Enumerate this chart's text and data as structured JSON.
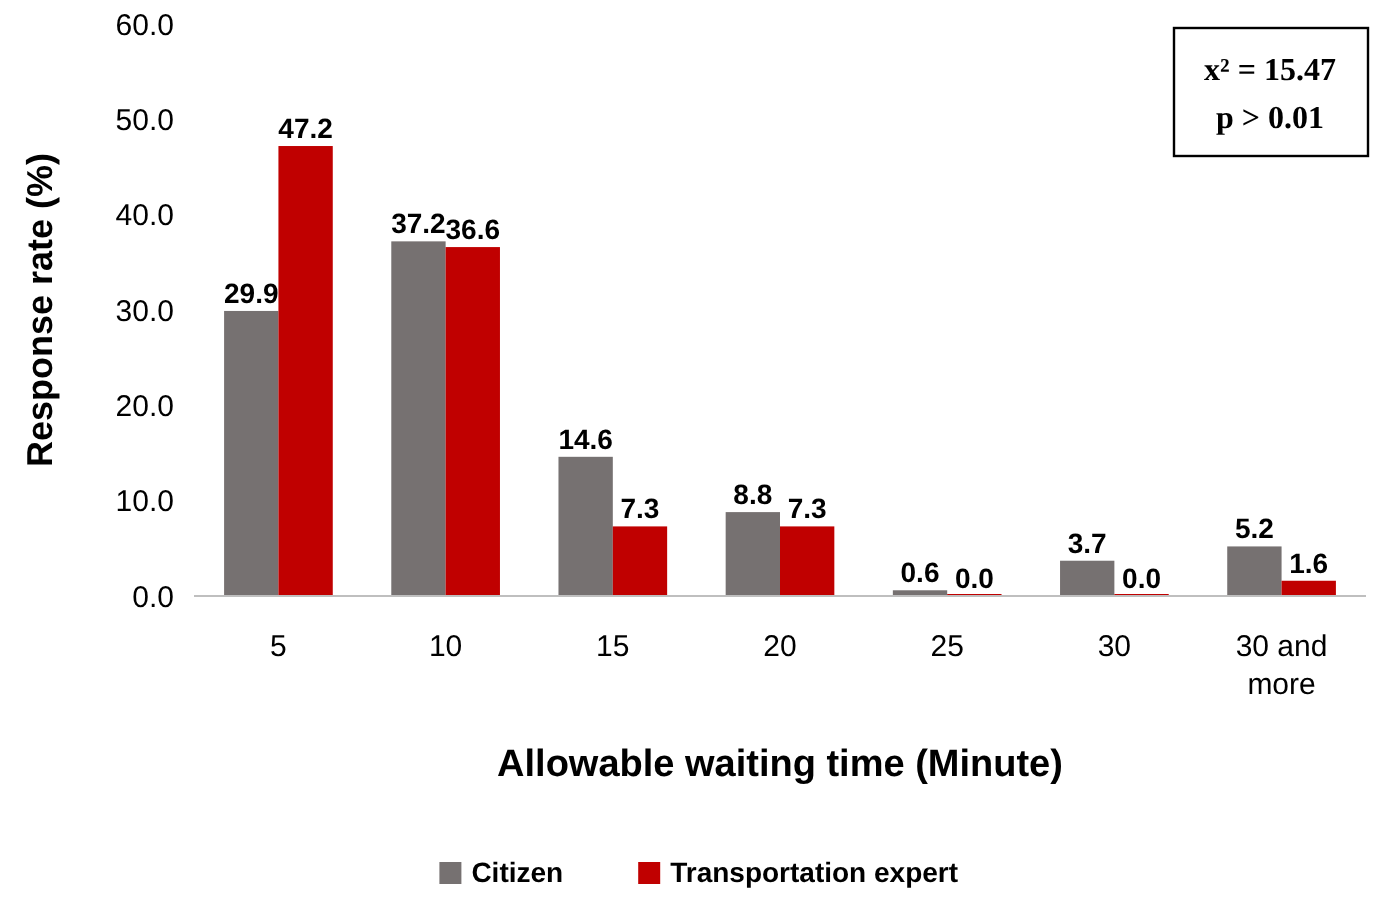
{
  "chart_data": {
    "type": "bar",
    "xlabel": "Allowable waiting time (Minute)",
    "ylabel": "Response rate (%)",
    "categories": [
      "5",
      "10",
      "15",
      "20",
      "25",
      "30",
      "30 and more"
    ],
    "series": [
      {
        "name": "Citizen",
        "color": "#767171",
        "values": [
          29.9,
          37.2,
          14.6,
          8.8,
          0.6,
          3.7,
          5.2
        ],
        "value_labels": [
          "29.9",
          "37.2",
          "14.6",
          "8.8",
          "0.6",
          "3.7",
          "5.2"
        ]
      },
      {
        "name": "Transportation expert",
        "color": "#c00000",
        "values": [
          47.2,
          36.6,
          7.3,
          7.3,
          0,
          0,
          1.6
        ],
        "value_labels": [
          "47.2",
          "36.6",
          "7.3",
          "7.3",
          "0.0",
          "0.0",
          "1.6"
        ]
      }
    ],
    "ylim": [
      0,
      60
    ],
    "yticks": [
      {
        "value": 0,
        "label": "0.0"
      },
      {
        "value": 10,
        "label": "10.0"
      },
      {
        "value": 20,
        "label": "20.0"
      },
      {
        "value": 30,
        "label": "30.0"
      },
      {
        "value": 40,
        "label": "40.0"
      },
      {
        "value": 50,
        "label": "50.0"
      },
      {
        "value": 60,
        "label": "60.0"
      }
    ],
    "grid": false,
    "legend": "bottom",
    "annotations": [
      "x² = 15.47",
      "p > 0.01"
    ]
  }
}
